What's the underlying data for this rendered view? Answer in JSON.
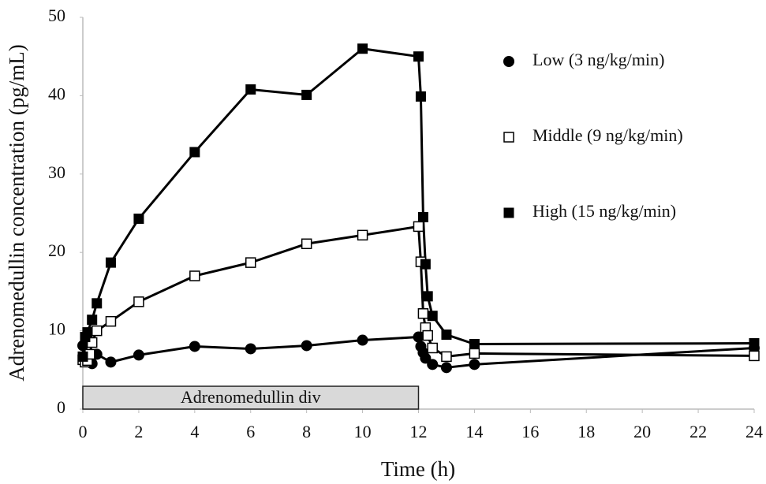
{
  "chart_data": {
    "type": "line",
    "xlabel": "Time (h)",
    "ylabel": "Adrenomedullin concentration (pg/mL)",
    "xlim": [
      0,
      24
    ],
    "xticks": [
      0,
      2,
      4,
      6,
      8,
      10,
      12,
      14,
      16,
      18,
      20,
      22,
      24
    ],
    "ylim": [
      0,
      50
    ],
    "yticks": [
      0,
      10,
      20,
      30,
      40,
      50
    ],
    "grid": false,
    "legend": "upper right",
    "annotation": {
      "text": "Adrenomedullin div",
      "x_range": [
        0,
        12
      ]
    },
    "series": [
      {
        "name": "Low (3 ng/kg/min)",
        "color": "#000000",
        "marker": "filled-circle",
        "x": [
          0,
          0.083,
          0.167,
          0.25,
          0.33,
          0.5,
          1,
          2,
          4,
          6,
          8,
          10,
          12,
          12.083,
          12.167,
          12.25,
          12.5,
          13,
          14,
          24
        ],
        "values": [
          8.1,
          6.8,
          6.3,
          6.0,
          5.8,
          7.0,
          6.0,
          6.9,
          8.0,
          7.7,
          8.1,
          8.8,
          9.2,
          8.0,
          7.2,
          6.5,
          5.7,
          5.3,
          5.7,
          7.8
        ]
      },
      {
        "name": "Middle (9 ng/kg/min)",
        "color": "#000000",
        "marker": "open-square",
        "x": [
          0,
          0.083,
          0.167,
          0.25,
          0.33,
          0.5,
          1,
          2,
          4,
          6,
          8,
          10,
          12,
          12.083,
          12.167,
          12.25,
          12.33,
          12.5,
          13,
          14,
          24
        ],
        "values": [
          6.3,
          6.0,
          6.2,
          7.0,
          8.5,
          10.0,
          11.2,
          13.7,
          17.0,
          18.7,
          21.1,
          22.2,
          23.3,
          18.8,
          12.2,
          10.4,
          9.4,
          7.8,
          6.7,
          7.1,
          6.8
        ]
      },
      {
        "name": "High (15 ng/kg/min)",
        "color": "#000000",
        "marker": "filled-square",
        "x": [
          0,
          0.083,
          0.167,
          0.33,
          0.5,
          1,
          2,
          4,
          6,
          8,
          10,
          12,
          12.083,
          12.167,
          12.25,
          12.33,
          12.5,
          13,
          14,
          24
        ],
        "values": [
          6.7,
          9.2,
          9.8,
          11.4,
          13.5,
          18.7,
          24.3,
          32.8,
          40.8,
          40.1,
          46.0,
          45.0,
          39.9,
          24.5,
          18.5,
          14.4,
          11.9,
          9.5,
          8.3,
          8.4
        ]
      }
    ]
  }
}
